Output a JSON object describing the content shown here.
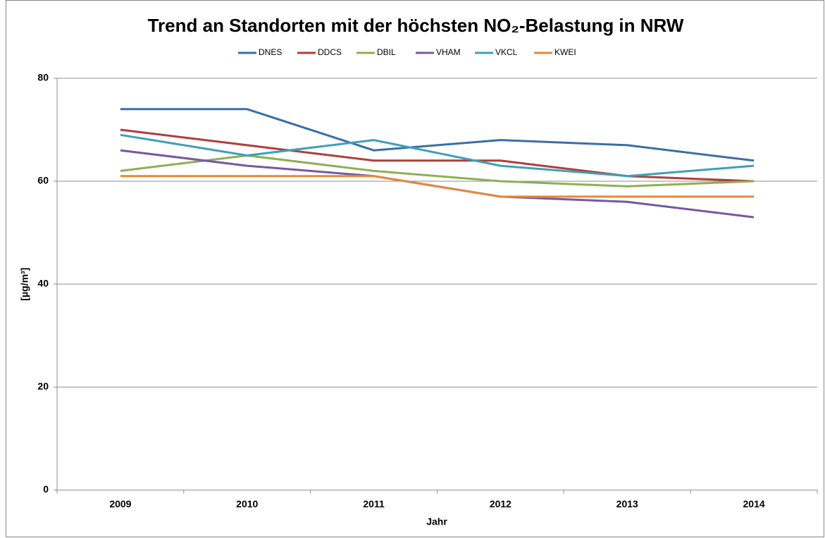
{
  "chart_data": {
    "type": "line",
    "title": "Trend an Standorten mit der höchsten NO₂-Belastung in NRW",
    "x_label": "Jahr",
    "y_label": "[µg/m³]",
    "categories": [
      "2009",
      "2010",
      "2011",
      "2012",
      "2013",
      "2014"
    ],
    "series": [
      {
        "name": "DNES",
        "color": "#3b6ea8",
        "values": [
          74,
          74,
          66,
          68,
          67,
          64
        ]
      },
      {
        "name": "DDCS",
        "color": "#b03d3a",
        "values": [
          70,
          67,
          64,
          64,
          61,
          60
        ]
      },
      {
        "name": "DBIL",
        "color": "#8db052",
        "values": [
          62,
          65,
          62,
          60,
          59,
          60
        ]
      },
      {
        "name": "VHAM",
        "color": "#7459a0",
        "values": [
          66,
          63,
          61,
          57,
          56,
          53
        ]
      },
      {
        "name": "VKCL",
        "color": "#3fa0b9",
        "values": [
          69,
          65,
          68,
          63,
          61,
          63
        ]
      },
      {
        "name": "KWEI",
        "color": "#e4893b",
        "values": [
          61,
          61,
          61,
          57,
          57,
          57
        ]
      }
    ],
    "ylim": [
      0,
      80
    ],
    "yticks": [
      0,
      20,
      40,
      60,
      80
    ],
    "grid": true,
    "legend": "top"
  }
}
